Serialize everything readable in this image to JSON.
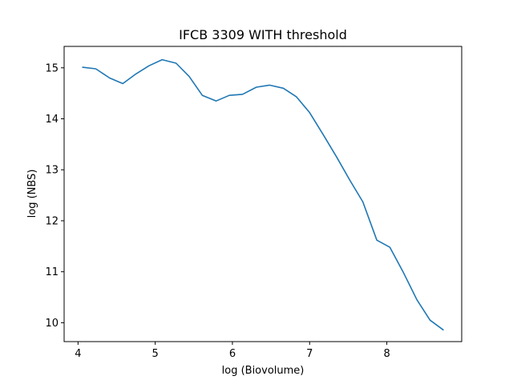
{
  "chart_data": {
    "type": "line",
    "title": "IFCB 3309 WITH threshold",
    "xlabel": "log (Biovolume)",
    "ylabel": "log (NBS)",
    "xlim": [
      3.82,
      8.97
    ],
    "ylim": [
      9.63,
      15.42
    ],
    "xticks": [
      4,
      5,
      6,
      7,
      8
    ],
    "yticks": [
      10,
      11,
      12,
      13,
      14,
      15
    ],
    "grid": false,
    "series": [
      {
        "color": "#1f77b4",
        "x": [
          4.06,
          4.23,
          4.41,
          4.58,
          4.75,
          4.92,
          5.09,
          5.27,
          5.44,
          5.61,
          5.79,
          5.96,
          6.13,
          6.31,
          6.48,
          6.66,
          6.83,
          7.0,
          7.18,
          7.35,
          7.52,
          7.69,
          7.87,
          8.04,
          8.21,
          8.39,
          8.56,
          8.73
        ],
        "y": [
          15.01,
          14.98,
          14.8,
          14.69,
          14.88,
          15.04,
          15.16,
          15.09,
          14.83,
          14.46,
          14.35,
          14.46,
          14.48,
          14.62,
          14.66,
          14.6,
          14.43,
          14.12,
          13.68,
          13.25,
          12.8,
          12.37,
          11.62,
          11.48,
          11.0,
          10.45,
          10.05,
          9.86
        ]
      }
    ]
  }
}
